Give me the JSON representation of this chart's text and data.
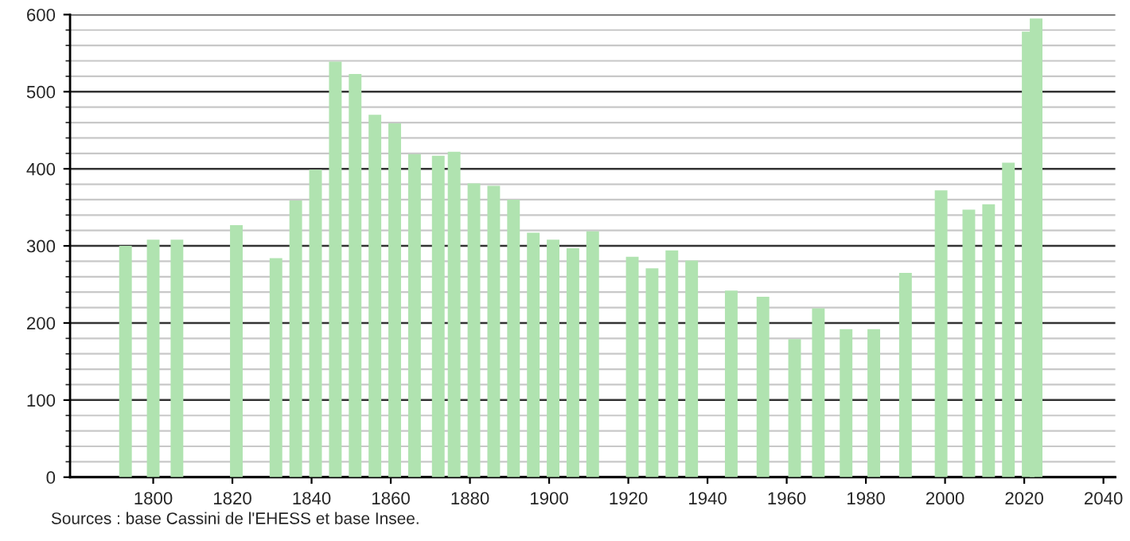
{
  "chart_data": {
    "type": "bar",
    "x": [
      1793,
      1800,
      1806,
      1821,
      1831,
      1836,
      1841,
      1846,
      1851,
      1856,
      1861,
      1866,
      1872,
      1876,
      1881,
      1886,
      1891,
      1896,
      1901,
      1906,
      1911,
      1921,
      1926,
      1931,
      1936,
      1946,
      1954,
      1962,
      1968,
      1975,
      1982,
      1990,
      1999,
      2006,
      2011,
      2016,
      2021,
      2023
    ],
    "values": [
      300,
      308,
      308,
      327,
      284,
      359,
      399,
      539,
      523,
      470,
      459,
      419,
      417,
      422,
      381,
      378,
      360,
      317,
      308,
      297,
      319,
      286,
      271,
      294,
      281,
      242,
      234,
      179,
      219,
      192,
      192,
      265,
      372,
      347,
      354,
      408,
      578,
      595
    ],
    "color": "#b0e3b0",
    "xlim": [
      1779,
      2043
    ],
    "xticks": [
      1800,
      1820,
      1840,
      1860,
      1880,
      1900,
      1920,
      1940,
      1960,
      1980,
      2000,
      2020,
      2040
    ],
    "ylim": [
      0,
      600
    ],
    "yticks": [
      0,
      100,
      200,
      300,
      400,
      500,
      600
    ],
    "grid": "y",
    "annotations": [
      "Sources : base Cassini de l'EHESS et base Insee."
    ]
  }
}
